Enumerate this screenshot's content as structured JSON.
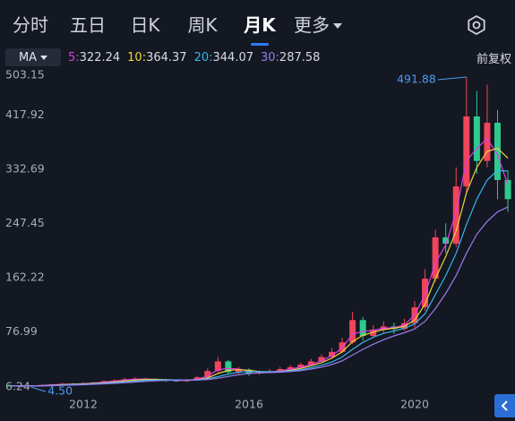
{
  "tabs": [
    "分时",
    "五日",
    "日K",
    "周K",
    "月K",
    "更多"
  ],
  "active_tab": 4,
  "ma_button": "MA",
  "price_adjust": "前复权",
  "chart_data": {
    "type": "candlestick",
    "x": [
      2010.25,
      2010.5,
      2010.75,
      2011,
      2011.25,
      2011.5,
      2011.75,
      2012,
      2012.25,
      2012.5,
      2012.75,
      2013,
      2013.25,
      2013.5,
      2013.75,
      2014,
      2014.25,
      2014.5,
      2014.75,
      2015,
      2015.25,
      2015.5,
      2015.75,
      2016,
      2016.25,
      2016.5,
      2016.75,
      2017,
      2017.25,
      2017.5,
      2017.75,
      2018,
      2018.25,
      2018.5,
      2018.75,
      2019,
      2019.25,
      2019.5,
      2019.75,
      2020,
      2020.25,
      2020.5,
      2020.75,
      2021,
      2021.25,
      2021.5,
      2021.75,
      2022,
      2022.25
    ],
    "open": [
      7,
      6.5,
      6,
      7,
      8,
      9,
      10,
      9.5,
      11,
      12,
      14,
      15,
      17,
      18,
      17,
      16,
      15,
      14,
      16,
      20,
      30,
      45,
      28,
      32,
      26,
      28,
      30,
      33,
      36,
      40,
      45,
      52,
      60,
      75,
      110,
      85,
      95,
      100,
      96,
      105,
      130,
      175,
      240,
      230,
      320,
      430,
      360,
      420,
      330
    ],
    "close": [
      6.5,
      6,
      7,
      8,
      9,
      10,
      9.5,
      11,
      12,
      14,
      15,
      17,
      18,
      17,
      16,
      15,
      14,
      16,
      20,
      30,
      45,
      28,
      32,
      26,
      28,
      30,
      33,
      36,
      40,
      45,
      52,
      60,
      75,
      110,
      85,
      95,
      100,
      96,
      105,
      130,
      175,
      240,
      230,
      320,
      430,
      360,
      420,
      330,
      300
    ],
    "high": [
      8,
      7,
      7.5,
      9,
      10,
      11,
      11,
      12,
      13,
      15,
      17,
      19,
      20,
      19,
      18,
      17,
      16,
      17,
      22,
      34,
      52,
      47,
      36,
      34,
      31,
      33,
      36,
      39,
      43,
      49,
      56,
      66,
      82,
      123,
      115,
      102,
      108,
      106,
      112,
      140,
      190,
      252,
      262,
      350,
      491.88,
      470,
      480,
      440,
      345
    ],
    "low": [
      5.5,
      5,
      4.5,
      6.5,
      7.5,
      8.5,
      8.5,
      9,
      10,
      11,
      13,
      14,
      16,
      15,
      14,
      13,
      13,
      13,
      15,
      19,
      28,
      24,
      25,
      22,
      24,
      27,
      29,
      32,
      35,
      39,
      44,
      50,
      58,
      72,
      78,
      82,
      90,
      88,
      93,
      98,
      125,
      170,
      215,
      225,
      310,
      340,
      350,
      300,
      280
    ],
    "up_color": "#f0455a",
    "down_color": "#2fc98e",
    "ma_series": [
      {
        "name": "5:",
        "legend_value": 322.24,
        "color": "#e03ce8",
        "values": [
          6.5,
          6.3,
          6.5,
          7.2,
          8,
          9,
          9.4,
          10,
          11,
          12.5,
          14,
          15.5,
          17,
          17.3,
          16.8,
          16,
          15,
          15.2,
          17,
          22,
          32,
          34,
          33,
          30,
          28,
          28.5,
          30,
          33,
          36,
          40,
          46,
          54,
          66,
          88,
          92,
          94,
          97,
          98,
          102,
          118,
          150,
          200,
          228,
          280,
          360,
          380,
          395,
          370,
          322.24
        ]
      },
      {
        "name": "10:",
        "legend_value": 364.37,
        "color": "#f2d23a",
        "values": [
          6.5,
          6.4,
          6.4,
          6.8,
          7.5,
          8.4,
          9,
          9.6,
          10.4,
          11.5,
          12.8,
          14.2,
          15.6,
          16.5,
          16.8,
          16.4,
          15.8,
          15.3,
          16,
          19,
          26,
          31,
          32,
          31,
          29,
          28.5,
          29,
          31,
          34,
          38,
          43,
          50,
          60,
          76,
          86,
          91,
          95,
          97,
          100,
          110,
          135,
          175,
          210,
          250,
          310,
          350,
          375,
          380,
          364.37
        ]
      },
      {
        "name": "20:",
        "legend_value": 344.07,
        "color": "#36b6e8",
        "values": [
          6.5,
          6.4,
          6.4,
          6.6,
          7.1,
          7.8,
          8.4,
          9,
          9.8,
          10.6,
          11.6,
          12.8,
          14,
          15,
          15.8,
          16.1,
          16,
          15.8,
          16,
          17.5,
          21,
          25,
          28,
          29,
          29,
          28.8,
          29,
          30,
          32,
          35,
          39,
          44,
          52,
          64,
          75,
          83,
          89,
          93,
          97,
          104,
          120,
          150,
          180,
          215,
          260,
          300,
          330,
          345,
          344.07
        ]
      },
      {
        "name": "30:",
        "legend_value": 287.58,
        "color": "#9b7cf0",
        "values": [
          6.5,
          6.4,
          6.4,
          6.5,
          6.8,
          7.3,
          7.8,
          8.4,
          9,
          9.7,
          10.5,
          11.5,
          12.6,
          13.6,
          14.5,
          15.1,
          15.4,
          15.5,
          15.7,
          16.5,
          18.5,
          21.5,
          24,
          26,
          27,
          27.5,
          28,
          29,
          30.5,
          33,
          36,
          40,
          46,
          55,
          64,
          72,
          79,
          85,
          90,
          96,
          108,
          128,
          152,
          180,
          215,
          245,
          265,
          280,
          287.58
        ]
      }
    ],
    "ylim": [
      6.24,
      503.15
    ],
    "yticks": [
      503.15,
      417.92,
      332.69,
      247.45,
      162.22,
      76.99,
      6.24
    ],
    "xticks": [
      2012,
      2016,
      2020
    ],
    "grid": false,
    "annotations": [
      {
        "x": 2021.25,
        "value": 491.88,
        "label": "491.88",
        "color": "#4a9bf5"
      },
      {
        "x": 2010.75,
        "value": 4.5,
        "label": "4.50",
        "color": "#4a9bf5"
      }
    ]
  }
}
